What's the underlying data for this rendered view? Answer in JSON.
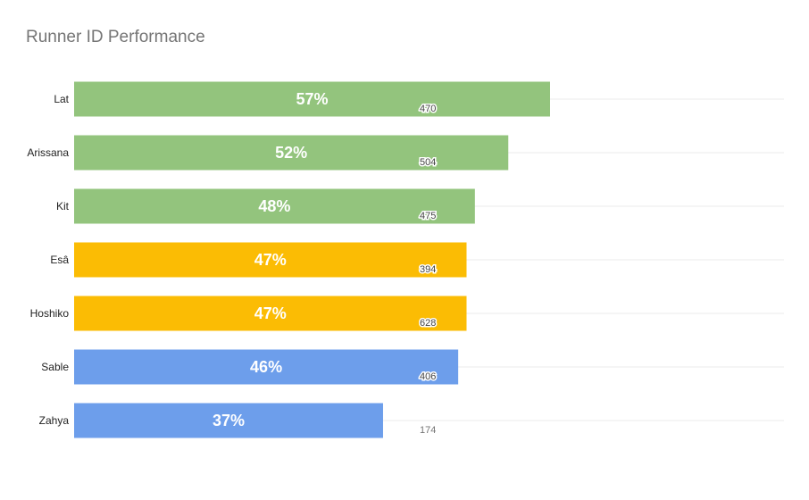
{
  "chart_data": {
    "type": "bar",
    "orientation": "horizontal",
    "title": "Runner ID Performance",
    "categories": [
      "Lat",
      "Arissana",
      "Kit",
      "Esâ",
      "Hoshiko",
      "Sable",
      "Zahya"
    ],
    "values": [
      57,
      52,
      48,
      47,
      47,
      46,
      37
    ],
    "value_labels": [
      "57%",
      "52%",
      "48%",
      "47%",
      "47%",
      "46%",
      "37%"
    ],
    "counts": [
      470,
      504,
      475,
      394,
      628,
      406,
      174
    ],
    "bar_colors": [
      "#93c47d",
      "#93c47d",
      "#93c47d",
      "#fbbc04",
      "#fbbc04",
      "#6d9eeb",
      "#6d9eeb"
    ],
    "xlim": [
      0,
      100
    ],
    "grid": true,
    "legend": "none"
  }
}
